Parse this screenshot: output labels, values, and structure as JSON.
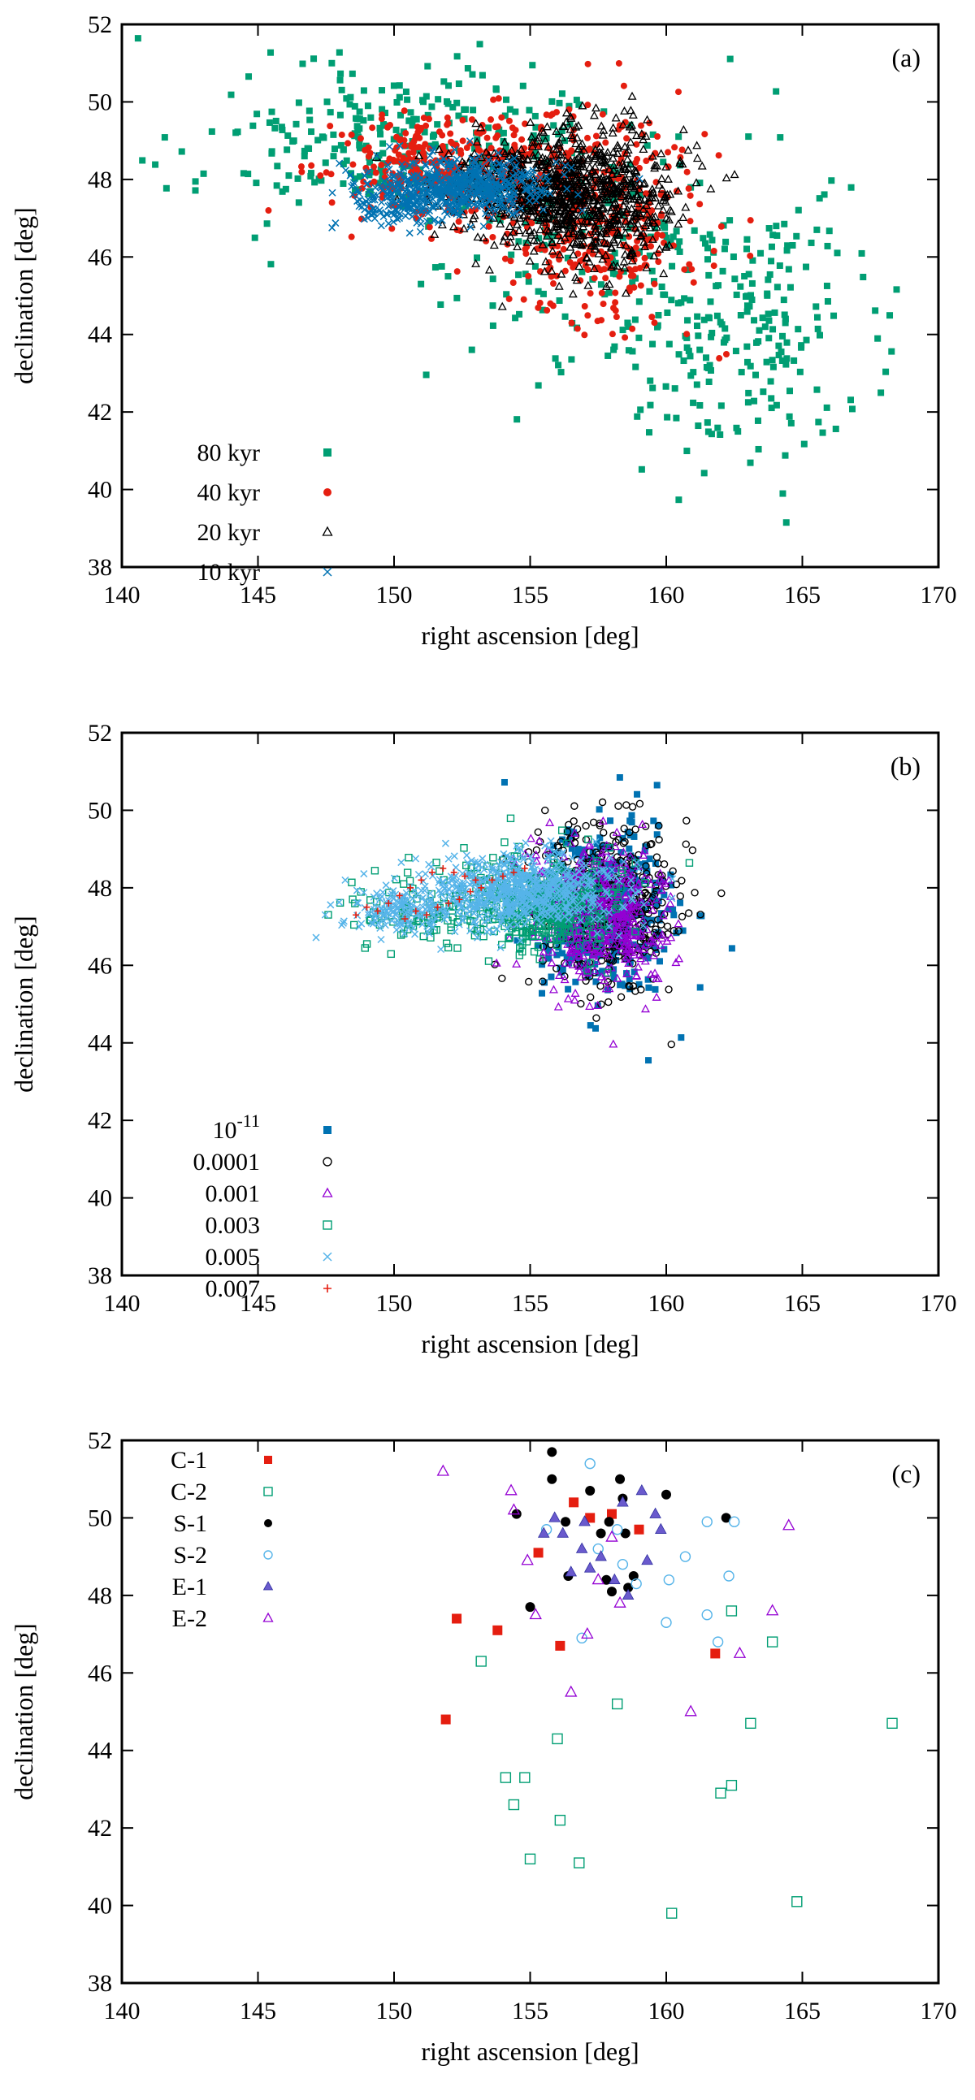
{
  "chart_data": [
    {
      "type": "scatter",
      "panel_tag": "(a)",
      "xlabel": "right ascension [deg]",
      "ylabel": "declination [deg]",
      "xlim": [
        140,
        170
      ],
      "ylim": [
        38,
        52
      ],
      "xticks": [
        140,
        145,
        150,
        155,
        160,
        165,
        170
      ],
      "yticks": [
        38,
        40,
        42,
        44,
        46,
        48,
        50,
        52
      ],
      "xtick_labels": [
        "140",
        "145",
        "150",
        "155",
        "160",
        "165",
        "170"
      ],
      "ytick_labels": [
        "38",
        "40",
        "42",
        "44",
        "46",
        "48",
        "50",
        "52"
      ],
      "legend": "bottom-left",
      "series": [
        {
          "name": "80 kyr",
          "label": "80 kyr",
          "marker": "square-filled",
          "color": "#009e73",
          "clouds": [
            {
              "cx": 149.5,
              "cy": 49.0,
              "sx": 3.2,
              "sy": 1.0,
              "n": 260
            },
            {
              "cx": 157.0,
              "cy": 46.5,
              "sx": 3.0,
              "sy": 1.8,
              "n": 160
            },
            {
              "cx": 162.5,
              "cy": 44.2,
              "sx": 2.6,
              "sy": 1.6,
              "n": 230
            }
          ]
        },
        {
          "name": "40 kyr",
          "label": "40 kyr",
          "marker": "circle-filled",
          "color": "#e51e10",
          "clouds": [
            {
              "cx": 152.0,
              "cy": 48.3,
              "sx": 2.2,
              "sy": 0.7,
              "n": 320
            },
            {
              "cx": 157.5,
              "cy": 46.8,
              "sx": 2.0,
              "sy": 1.4,
              "n": 380
            }
          ]
        },
        {
          "name": "20 kyr",
          "label": "20 kyr",
          "marker": "triangle-open",
          "color": "#000000",
          "clouds": [
            {
              "cx": 157.2,
              "cy": 47.6,
              "sx": 1.6,
              "sy": 0.9,
              "n": 700
            },
            {
              "cx": 154.5,
              "cy": 47.8,
              "sx": 1.6,
              "sy": 0.6,
              "n": 250
            }
          ]
        },
        {
          "name": "10 kyr",
          "label": "10 kyr",
          "marker": "cross",
          "color": "#0072b2",
          "clouds": [
            {
              "cx": 152.5,
              "cy": 47.8,
              "sx": 1.6,
              "sy": 0.35,
              "n": 550
            },
            {
              "cx": 150.0,
              "cy": 47.3,
              "sx": 0.9,
              "sy": 0.3,
              "n": 120
            }
          ]
        }
      ]
    },
    {
      "type": "scatter",
      "panel_tag": "(b)",
      "xlabel": "right ascension [deg]",
      "ylabel": "declination [deg]",
      "xlim": [
        140,
        170
      ],
      "ylim": [
        38,
        52
      ],
      "xticks": [
        140,
        145,
        150,
        155,
        160,
        165,
        170
      ],
      "yticks": [
        38,
        40,
        42,
        44,
        46,
        48,
        50,
        52
      ],
      "xtick_labels": [
        "140",
        "145",
        "150",
        "155",
        "160",
        "165",
        "170"
      ],
      "ytick_labels": [
        "38",
        "40",
        "42",
        "44",
        "46",
        "48",
        "50",
        "52"
      ],
      "legend": "bottom-left",
      "series": [
        {
          "name": "1e-11",
          "label_base": "10",
          "label_exp": "-11",
          "marker": "square-filled",
          "color": "#0072b2",
          "clouds": [
            {
              "cx": 157.8,
              "cy": 47.4,
              "sx": 1.3,
              "sy": 1.1,
              "n": 420
            }
          ]
        },
        {
          "name": "0.0001",
          "label": "0.0001",
          "marker": "circle-open",
          "color": "#000000",
          "clouds": [
            {
              "cx": 157.8,
              "cy": 47.5,
              "sx": 1.3,
              "sy": 1.1,
              "n": 420
            }
          ]
        },
        {
          "name": "0.001",
          "label": "0.001",
          "marker": "triangle-open",
          "color": "#9400d3",
          "clouds": [
            {
              "cx": 157.6,
              "cy": 47.3,
              "sx": 1.2,
              "sy": 0.9,
              "n": 500
            }
          ]
        },
        {
          "name": "0.003",
          "label": "0.003",
          "marker": "square-open",
          "color": "#009e73",
          "clouds": [
            {
              "cx": 155.5,
              "cy": 47.6,
              "sx": 1.4,
              "sy": 0.6,
              "n": 400
            },
            {
              "cx": 151.0,
              "cy": 47.4,
              "sx": 1.5,
              "sy": 0.5,
              "n": 90
            }
          ]
        },
        {
          "name": "0.005",
          "label": "0.005",
          "marker": "cross",
          "color": "#56b4e9",
          "clouds": [
            {
              "cx": 154.5,
              "cy": 47.9,
              "sx": 1.8,
              "sy": 0.45,
              "n": 650
            },
            {
              "cx": 150.0,
              "cy": 47.4,
              "sx": 1.2,
              "sy": 0.35,
              "n": 140
            }
          ]
        },
        {
          "name": "0.007",
          "label": "0.007",
          "marker": "plus",
          "color": "#e51e10",
          "points": [
            [
              149.4,
              47.4
            ],
            [
              149.8,
              47.6
            ],
            [
              150.2,
              47.8
            ],
            [
              150.6,
              48.0
            ],
            [
              151.0,
              48.2
            ],
            [
              151.4,
              48.4
            ],
            [
              151.8,
              48.5
            ],
            [
              152.2,
              48.4
            ],
            [
              152.6,
              48.3
            ],
            [
              153.0,
              48.2
            ],
            [
              151.2,
              47.3
            ],
            [
              151.6,
              47.5
            ],
            [
              152.0,
              47.6
            ],
            [
              152.4,
              47.7
            ],
            [
              152.8,
              47.9
            ],
            [
              153.2,
              48.0
            ],
            [
              153.6,
              48.2
            ],
            [
              154.0,
              48.3
            ],
            [
              154.4,
              48.4
            ],
            [
              154.8,
              48.5
            ],
            [
              148.6,
              47.3
            ],
            [
              149.0,
              47.5
            ],
            [
              150.4,
              47.2
            ],
            [
              150.8,
              47.4
            ]
          ]
        }
      ]
    },
    {
      "type": "scatter",
      "panel_tag": "(c)",
      "xlabel": "right ascension [deg]",
      "ylabel": "declination [deg]",
      "xlim": [
        140,
        170
      ],
      "ylim": [
        38,
        52
      ],
      "xticks": [
        140,
        145,
        150,
        155,
        160,
        165,
        170
      ],
      "yticks": [
        38,
        40,
        42,
        44,
        46,
        48,
        50,
        52
      ],
      "xtick_labels": [
        "140",
        "145",
        "150",
        "155",
        "160",
        "165",
        "170"
      ],
      "ytick_labels": [
        "38",
        "40",
        "42",
        "44",
        "46",
        "48",
        "50",
        "52"
      ],
      "legend": "top-left",
      "series": [
        {
          "name": "C-1",
          "label": "C-1",
          "marker": "square-filled",
          "color": "#e51e10",
          "points": [
            [
              151.9,
              44.8
            ],
            [
              152.3,
              47.4
            ],
            [
              153.8,
              47.1
            ],
            [
              155.3,
              49.1
            ],
            [
              156.1,
              46.7
            ],
            [
              156.6,
              50.4
            ],
            [
              157.2,
              50.0
            ],
            [
              158.0,
              50.1
            ],
            [
              159.0,
              49.7
            ],
            [
              161.8,
              46.5
            ]
          ]
        },
        {
          "name": "C-2",
          "label": "C-2",
          "marker": "square-open",
          "color": "#009e73",
          "points": [
            [
              153.2,
              46.3
            ],
            [
              154.1,
              43.3
            ],
            [
              154.4,
              42.6
            ],
            [
              154.8,
              43.3
            ],
            [
              155.0,
              41.2
            ],
            [
              156.0,
              44.3
            ],
            [
              156.1,
              42.2
            ],
            [
              156.8,
              41.1
            ],
            [
              158.2,
              45.2
            ],
            [
              160.2,
              39.8
            ],
            [
              162.0,
              42.9
            ],
            [
              162.4,
              43.1
            ],
            [
              162.4,
              47.6
            ],
            [
              163.1,
              44.7
            ],
            [
              163.9,
              46.8
            ],
            [
              164.8,
              40.1
            ],
            [
              168.3,
              44.7
            ]
          ]
        },
        {
          "name": "S-1",
          "label": "S-1",
          "marker": "circle-filled",
          "color": "#000000",
          "points": [
            [
              154.5,
              50.1
            ],
            [
              155.0,
              47.7
            ],
            [
              155.8,
              51.7
            ],
            [
              155.8,
              51.0
            ],
            [
              156.3,
              49.9
            ],
            [
              156.4,
              48.5
            ],
            [
              157.2,
              50.7
            ],
            [
              157.6,
              49.6
            ],
            [
              157.8,
              48.4
            ],
            [
              157.9,
              49.9
            ],
            [
              158.0,
              48.1
            ],
            [
              158.3,
              51.0
            ],
            [
              158.4,
              50.5
            ],
            [
              158.5,
              49.6
            ],
            [
              158.6,
              48.2
            ],
            [
              158.8,
              48.5
            ],
            [
              160.0,
              50.6
            ],
            [
              162.2,
              50.0
            ]
          ]
        },
        {
          "name": "S-2",
          "label": "S-2",
          "marker": "circle-open",
          "color": "#56b4e9",
          "points": [
            [
              155.6,
              49.7
            ],
            [
              156.9,
              46.9
            ],
            [
              157.2,
              51.4
            ],
            [
              157.5,
              49.2
            ],
            [
              158.2,
              49.7
            ],
            [
              158.4,
              48.8
            ],
            [
              160.1,
              48.4
            ],
            [
              160.7,
              49.0
            ],
            [
              160.0,
              47.3
            ],
            [
              161.5,
              49.9
            ],
            [
              161.5,
              47.5
            ],
            [
              162.3,
              48.5
            ],
            [
              162.5,
              49.9
            ],
            [
              161.9,
              46.8
            ],
            [
              158.9,
              48.3
            ]
          ]
        },
        {
          "name": "E-1",
          "label": "E-1",
          "marker": "triangle-filled",
          "color": "#6a5acd",
          "points": [
            [
              155.5,
              49.6
            ],
            [
              156.2,
              49.6
            ],
            [
              156.5,
              48.6
            ],
            [
              157.0,
              49.9
            ],
            [
              157.2,
              48.7
            ],
            [
              157.6,
              49.0
            ],
            [
              158.1,
              48.4
            ],
            [
              158.6,
              48.0
            ],
            [
              159.1,
              50.7
            ],
            [
              159.3,
              48.9
            ],
            [
              159.6,
              50.1
            ],
            [
              159.8,
              49.7
            ],
            [
              158.4,
              50.4
            ],
            [
              156.9,
              49.2
            ],
            [
              155.9,
              50.0
            ]
          ]
        },
        {
          "name": "E-2",
          "label": "E-2",
          "marker": "triangle-open",
          "color": "#9400d3",
          "points": [
            [
              151.8,
              51.2
            ],
            [
              154.3,
              50.7
            ],
            [
              154.4,
              50.2
            ],
            [
              154.9,
              48.9
            ],
            [
              155.2,
              47.5
            ],
            [
              156.5,
              45.5
            ],
            [
              157.1,
              47.0
            ],
            [
              157.5,
              48.4
            ],
            [
              158.0,
              49.5
            ],
            [
              158.3,
              47.8
            ],
            [
              160.9,
              45.0
            ],
            [
              162.7,
              46.5
            ],
            [
              163.9,
              47.6
            ],
            [
              164.5,
              49.8
            ]
          ]
        }
      ]
    }
  ]
}
